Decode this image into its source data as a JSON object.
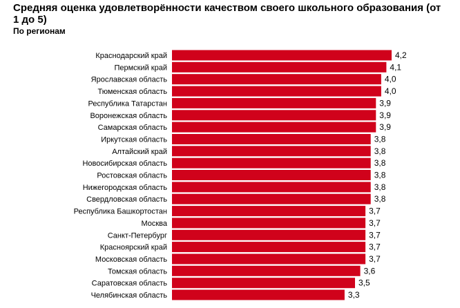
{
  "chart_data": {
    "type": "bar",
    "orientation": "horizontal",
    "title": "Средняя оценка удовлетворённости качеством своего школьного образования (от 1 до 5)",
    "subtitle": "По регионам",
    "bar_color": "#d0021b",
    "categories": [
      "Краснодарский край",
      "Пермский край",
      "Ярославская область",
      "Тюменская область",
      "Республика Татарстан",
      "Воронежская область",
      "Самарская область",
      "Иркутская область",
      "Алтайский край",
      "Новосибирская область",
      "Ростовская область",
      "Нижегородская область",
      "Свердловская область",
      "Республика Башкортостан",
      "Москва",
      "Санкт-Петербург",
      "Красноярский край",
      "Московская область",
      "Томская область",
      "Саратовская область",
      "Челябинская область"
    ],
    "values": [
      4.2,
      4.1,
      4.0,
      4.0,
      3.9,
      3.9,
      3.9,
      3.8,
      3.8,
      3.8,
      3.8,
      3.8,
      3.8,
      3.7,
      3.7,
      3.7,
      3.7,
      3.7,
      3.6,
      3.5,
      3.3
    ],
    "value_labels": [
      "4,2",
      "4,1",
      "4,0",
      "4,0",
      "3,9",
      "3,9",
      "3,9",
      "3,8",
      "3,8",
      "3,8",
      "3,8",
      "3,8",
      "3,8",
      "3,7",
      "3,7",
      "3,7",
      "3,7",
      "3,7",
      "3,6",
      "3,5",
      "3,3"
    ],
    "xlim": [
      0,
      4.3
    ],
    "grid": false,
    "legend": false
  }
}
